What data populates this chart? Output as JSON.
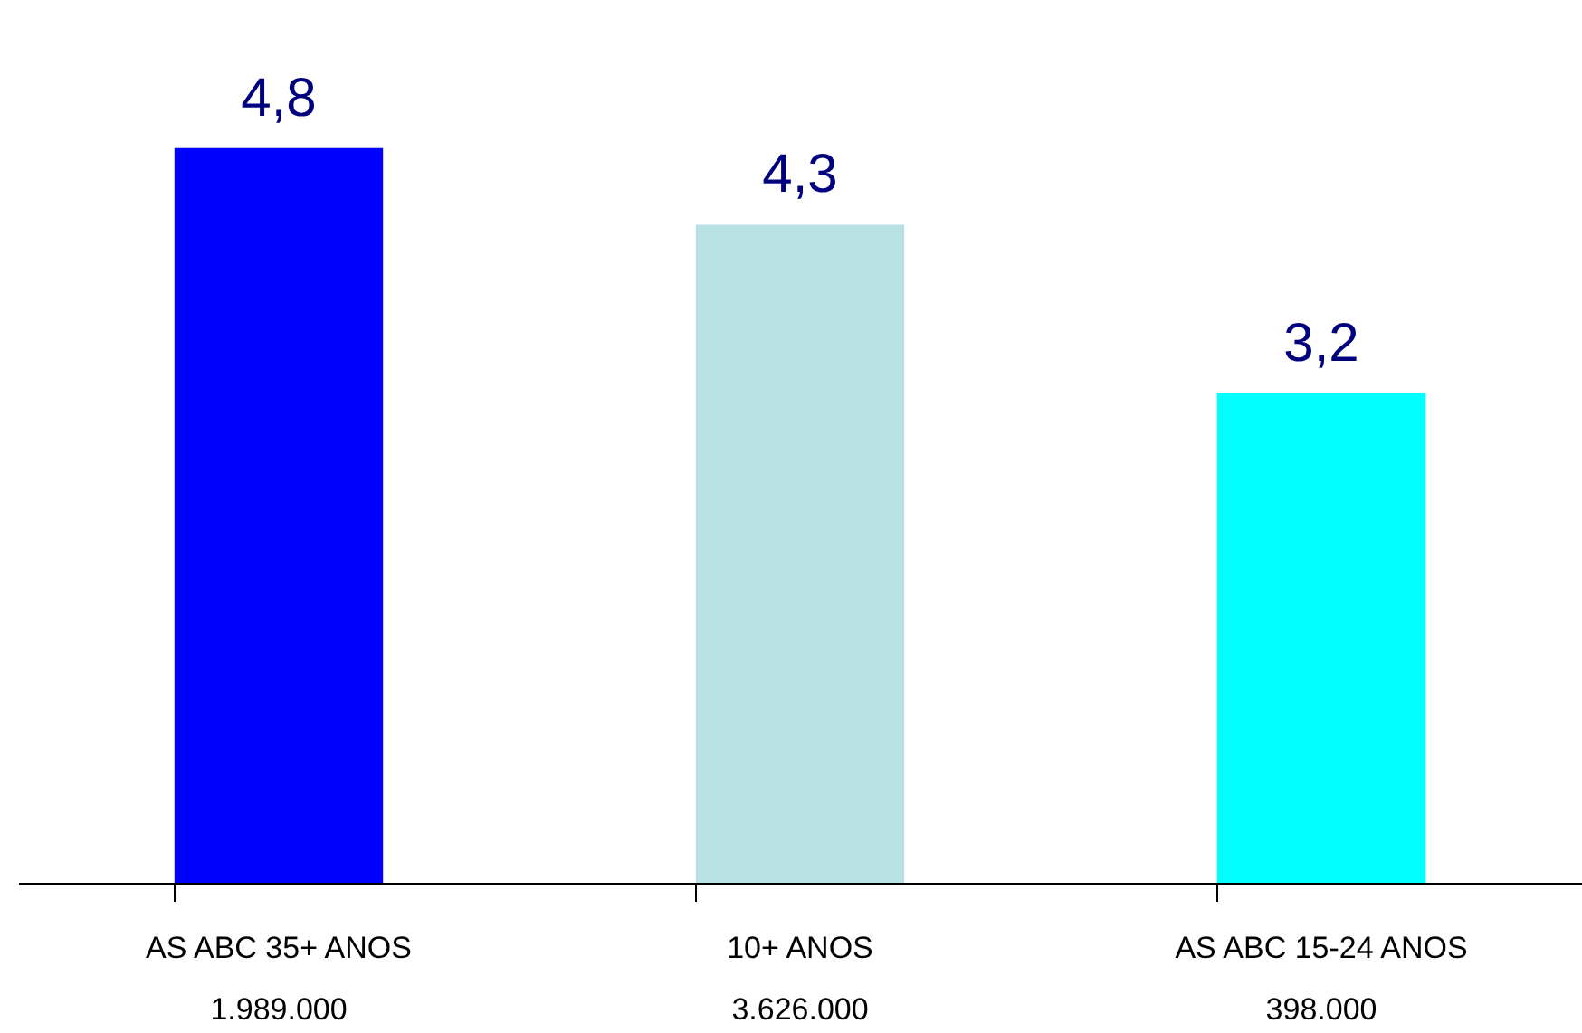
{
  "chart_data": {
    "type": "bar",
    "categories": [
      "AS ABC 35+ ANOS\n1.989.000",
      "10+ ANOS\n3.626.000",
      "AS ABC 15-24 ANOS\n398.000"
    ],
    "values": [
      4.8,
      4.3,
      3.2
    ],
    "value_labels": [
      "4,8",
      "4,3",
      "3,2"
    ],
    "colors": [
      "#0000ff",
      "#b9e0e3",
      "#00ffff"
    ],
    "tick_labels": "x"
  }
}
